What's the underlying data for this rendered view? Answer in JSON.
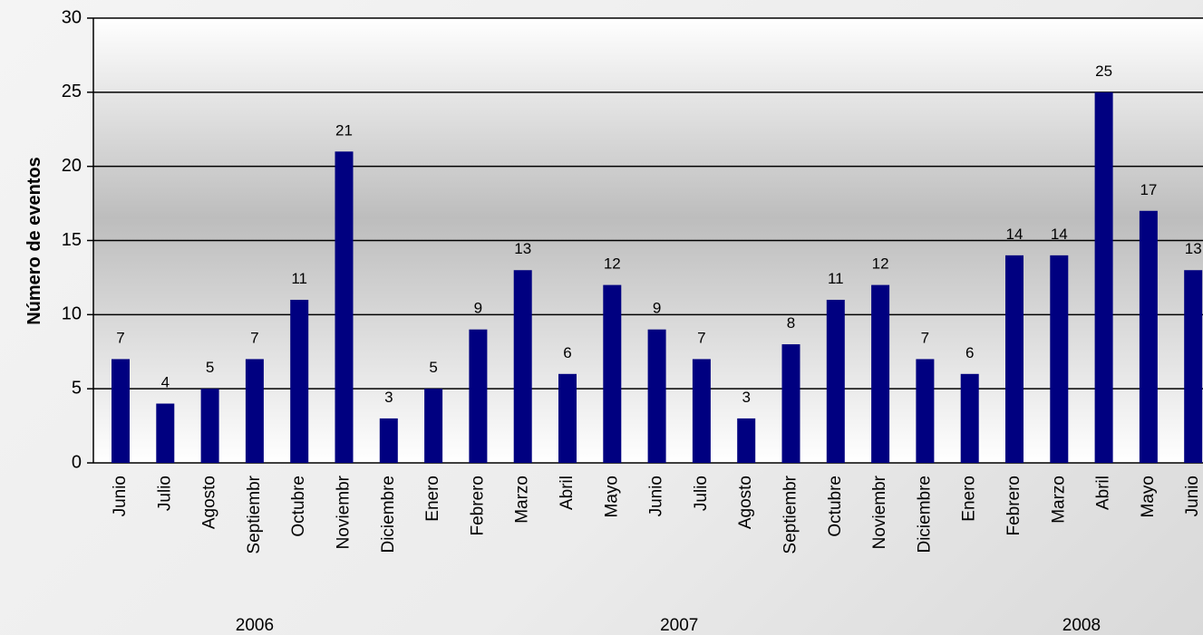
{
  "chart_data": {
    "type": "bar",
    "y_label": "Número de eventos",
    "categories": [
      "Junio",
      "Julio",
      "Agosto",
      "Septiembr",
      "Octubre",
      "Noviembr",
      "Diciembre",
      "Enero",
      "Febrero",
      "Marzo",
      "Abril",
      "Mayo",
      "Junio",
      "Julio",
      "Agosto",
      "Septiembr",
      "Octubre",
      "Noviembr",
      "Diciembre",
      "Enero",
      "Febrero",
      "Marzo",
      "Abril",
      "Mayo",
      "Junio"
    ],
    "values": [
      7,
      4,
      5,
      7,
      11,
      21,
      3,
      5,
      9,
      13,
      6,
      12,
      9,
      7,
      3,
      8,
      11,
      12,
      7,
      6,
      14,
      14,
      25,
      17,
      13
    ],
    "groups": [
      "2006",
      "2007",
      "2008"
    ],
    "color": "#000080",
    "ylim": [
      0,
      30
    ],
    "yticks": [
      0,
      5,
      10,
      15,
      20,
      25,
      30
    ],
    "grid": true
  }
}
